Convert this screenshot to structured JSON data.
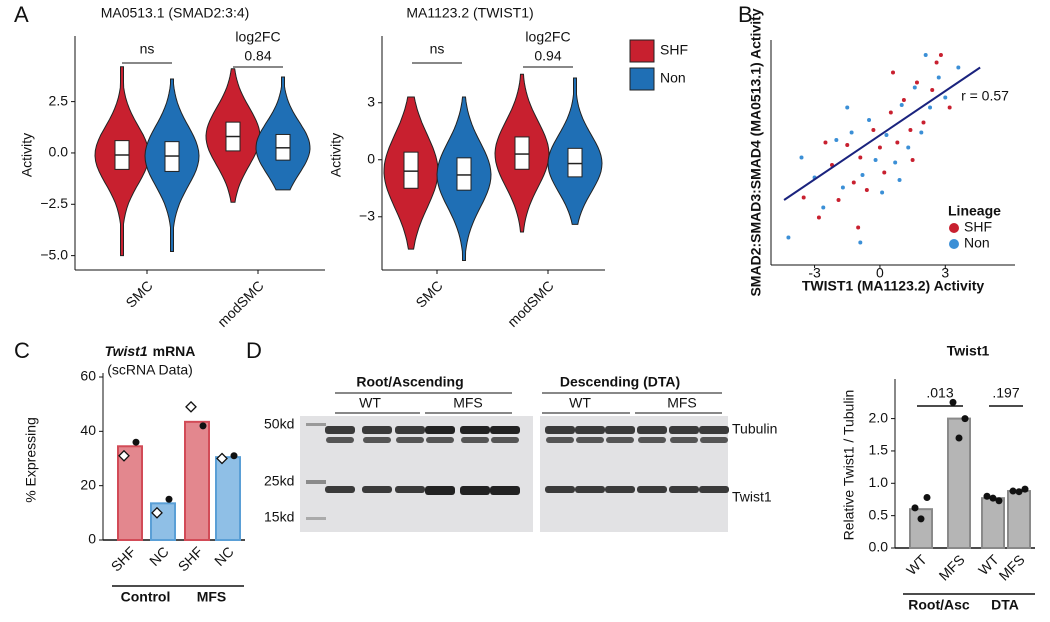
{
  "panels": [
    "A",
    "B",
    "C",
    "D"
  ],
  "blot": {
    "groups": [
      "Root/Ascending",
      "Descending (DTA)"
    ],
    "lanes": [
      "WT",
      "MFS",
      "WT",
      "MFS"
    ],
    "bands": [
      "Tubulin",
      "Twist1"
    ],
    "markers": [
      "50kd",
      "25kd",
      "15kd"
    ]
  },
  "chart_data": [
    {
      "type": "violin",
      "title": "MA0513.1 (SMAD2:3:4)",
      "y_label": "Activity",
      "categories": [
        "SMC",
        "modSMC"
      ],
      "series": [
        {
          "color": "#c8202f",
          "values": [
            -0.1,
            0.8
          ],
          "q1": [
            -0.8,
            0.1
          ],
          "q3": [
            0.6,
            1.5
          ],
          "min": [
            -5.0,
            -2.4
          ],
          "max": [
            4.2,
            4.1
          ]
        },
        {
          "color": "#1f6fb5",
          "values": [
            -0.15,
            0.25
          ],
          "q1": [
            -0.9,
            -0.35
          ],
          "q3": [
            0.55,
            0.9
          ],
          "min": [
            -4.8,
            -1.8
          ],
          "max": [
            3.6,
            3.7
          ]
        }
      ],
      "ylim": [
        -5.7,
        5.5
      ],
      "yticks": [
        2.5,
        {
          "value": 0,
          "label": "0.0"
        },
        {
          "value": -2.5,
          "label": "−2.5"
        },
        {
          "value": -5,
          "label": "−5.0"
        }
      ],
      "annotations": [
        "ns",
        "log2FC",
        "0.84"
      ]
    },
    {
      "type": "violin",
      "title": "MA1123.2 (TWIST1)",
      "y_label": "Activity",
      "categories": [
        "SMC",
        "modSMC"
      ],
      "series": [
        {
          "name": "SHF",
          "color": "#c8202f",
          "values": [
            -0.6,
            0.3
          ],
          "q1": [
            -1.5,
            -0.5
          ],
          "q3": [
            0.4,
            1.2
          ],
          "min": [
            -4.7,
            -3.8
          ],
          "max": [
            3.3,
            4.5
          ]
        },
        {
          "name": "Non",
          "color": "#1f6fb5",
          "values": [
            -0.8,
            -0.2
          ],
          "q1": [
            -1.6,
            -0.9
          ],
          "q3": [
            0.1,
            0.6
          ],
          "min": [
            -5.3,
            -3.4
          ],
          "max": [
            3.3,
            4.3
          ]
        }
      ],
      "ylim": [
        -5.8,
        6.3
      ],
      "yticks": [
        3,
        0,
        {
          "value": -3,
          "label": "−3"
        }
      ],
      "annotations": [
        "ns",
        "log2FC",
        "0.94"
      ]
    },
    {
      "type": "scatter",
      "x_label": "TWIST1 (MA1123.2) Activity",
      "y_label": "SMAD2:SMAD3:SMAD4 (MA0513.1) Activity",
      "xlim": [
        -5,
        6.2
      ],
      "ylim": [
        -4.5,
        4.5
      ],
      "xticks": [
        -3,
        0,
        3
      ],
      "legend_title": "Lineage",
      "series": [
        {
          "name": "SHF",
          "color": "#c8202f",
          "x": [
            -3.5,
            -2.8,
            -2.2,
            -1.9,
            -1.5,
            -1.2,
            -0.9,
            -0.6,
            -0.3,
            0,
            0.2,
            0.5,
            0.8,
            1.1,
            1.4,
            1.7,
            2.0,
            2.4,
            2.8,
            3.2,
            -1.0,
            0.6,
            1.5,
            -2.5,
            2.6
          ],
          "y": [
            -1.8,
            -2.6,
            -0.5,
            -1.9,
            0.3,
            -1.2,
            -0.2,
            -1.5,
            0.9,
            0.2,
            -0.8,
            1.6,
            0.4,
            2.1,
            0.9,
            2.8,
            1.2,
            2.5,
            3.9,
            1.8,
            -3.0,
            3.2,
            -0.3,
            0.4,
            3.6
          ]
        },
        {
          "name": "Non",
          "color": "#3b8fd6",
          "x": [
            -4.2,
            -3.0,
            -2.6,
            -2.0,
            -1.7,
            -1.3,
            -0.8,
            -0.5,
            -0.2,
            0.1,
            0.3,
            0.7,
            1.0,
            1.3,
            1.6,
            1.9,
            2.3,
            2.7,
            3.0,
            3.6,
            -3.6,
            -0.9,
            0.9,
            2.1,
            -1.5
          ],
          "y": [
            -3.4,
            -1.0,
            -2.2,
            0.5,
            -1.4,
            0.8,
            -0.9,
            1.3,
            -0.3,
            -1.6,
            0.7,
            -0.4,
            1.9,
            0.2,
            2.6,
            0.8,
            1.8,
            3.0,
            2.2,
            3.4,
            -0.2,
            -3.6,
            -1.1,
            3.9,
            1.8
          ]
        }
      ],
      "fit": {
        "color": "#1a237e",
        "x": [
          -4.4,
          4.6
        ],
        "y": [
          -1.9,
          3.4
        ]
      },
      "annotations": [
        "r = 0.57"
      ]
    },
    {
      "type": "bar",
      "title_italic": "Twist1",
      "title": "mRNA",
      "subtitle": "(scRNA Data)",
      "y_label": "% Expressing",
      "categories": [
        "SHF",
        "NC",
        "SHF",
        "NC"
      ],
      "groups": [
        "Control",
        "MFS"
      ],
      "values": [
        34.5,
        13.5,
        43.5,
        30.5
      ],
      "colors": [
        "#e3878e",
        "#8fbfe6",
        "#e3878e",
        "#8fbfe6"
      ],
      "edge_colors": [
        "#d24b57",
        "#5a9fd6",
        "#d24b57",
        "#5a9fd6"
      ],
      "ylim": [
        0,
        60
      ],
      "yticks": [
        0,
        20,
        40,
        60
      ],
      "points": [
        {
          "marker": "circle",
          "values": [
            36,
            15,
            42,
            31
          ]
        },
        {
          "marker": "diamond",
          "values": [
            31,
            10,
            49,
            30
          ]
        }
      ]
    },
    {
      "type": "bar",
      "title": "Twist1",
      "y_label": "Relative Twist1 / Tubulin",
      "categories": [
        "WT",
        "MFS",
        "WT",
        "MFS"
      ],
      "groups": [
        "Root/Asc",
        "DTA"
      ],
      "values": [
        0.6,
        2.0,
        0.77,
        0.88
      ],
      "colors": [
        "#b5b5b5",
        "#b5b5b5",
        "#b5b5b5",
        "#b5b5b5"
      ],
      "edge_colors": [
        "#8a8a8a",
        "#8a8a8a",
        "#8a8a8a",
        "#8a8a8a"
      ],
      "ylim": [
        0,
        2.55
      ],
      "yticks": [
        {
          "value": 0,
          "label": "0.0"
        },
        0.5,
        {
          "value": 1,
          "label": "1.0"
        },
        1.5,
        {
          "value": 2,
          "label": "2.0"
        }
      ],
      "replicates": [
        [
          0.62,
          0.78,
          0.45
        ],
        [
          2.25,
          2.0,
          1.7
        ],
        [
          0.8,
          0.73,
          0.77
        ],
        [
          0.88,
          0.91,
          0.87
        ]
      ],
      "annotations": [
        ".013",
        ".197"
      ]
    }
  ]
}
